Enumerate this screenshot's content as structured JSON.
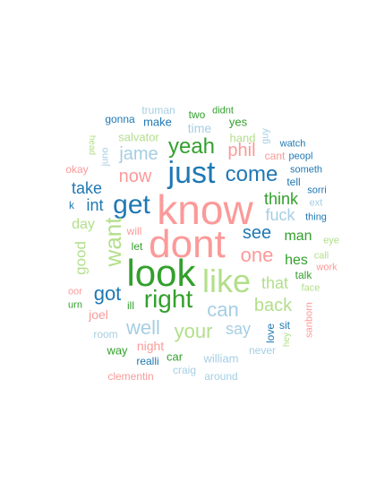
{
  "palette": {
    "dark_blue": "#1f78b4",
    "light_blue": "#a6cee3",
    "dark_green": "#33a02c",
    "light_green": "#b2df8a",
    "pink": "#fb9a99"
  },
  "words": [
    {
      "text": "know",
      "color": "#fb9a99"
    },
    {
      "text": "dont",
      "color": "#fb9a99"
    },
    {
      "text": "look",
      "color": "#33a02c"
    },
    {
      "text": "just",
      "color": "#1f78b4"
    },
    {
      "text": "like",
      "color": "#b2df8a"
    },
    {
      "text": "get",
      "color": "#1f78b4"
    },
    {
      "text": "right",
      "color": "#33a02c"
    },
    {
      "text": "come",
      "color": "#1f78b4"
    },
    {
      "text": "yeah",
      "color": "#33a02c"
    },
    {
      "text": "want",
      "color": "#b2df8a"
    },
    {
      "text": "now",
      "color": "#fb9a99"
    },
    {
      "text": "one",
      "color": "#fb9a99"
    },
    {
      "text": "got",
      "color": "#1f78b4"
    },
    {
      "text": "well",
      "color": "#a6cee3"
    },
    {
      "text": "your",
      "color": "#b2df8a"
    },
    {
      "text": "back",
      "color": "#b2df8a"
    },
    {
      "text": "can",
      "color": "#a6cee3"
    },
    {
      "text": "see",
      "color": "#1f78b4"
    },
    {
      "text": "jame",
      "color": "#a6cee3"
    },
    {
      "text": "phil",
      "color": "#fb9a99"
    },
    {
      "text": "think",
      "color": "#33a02c"
    },
    {
      "text": "fuck",
      "color": "#a6cee3"
    },
    {
      "text": "that",
      "color": "#b2df8a"
    },
    {
      "text": "take",
      "color": "#1f78b4"
    },
    {
      "text": "say",
      "color": "#a6cee3"
    },
    {
      "text": "good",
      "color": "#b2df8a"
    },
    {
      "text": "int",
      "color": "#1f78b4"
    },
    {
      "text": "man",
      "color": "#33a02c"
    },
    {
      "text": "hes",
      "color": "#33a02c"
    },
    {
      "text": "day",
      "color": "#b2df8a"
    },
    {
      "text": "time",
      "color": "#a6cee3"
    },
    {
      "text": "joel",
      "color": "#fb9a99"
    },
    {
      "text": "night",
      "color": "#fb9a99"
    },
    {
      "text": "make",
      "color": "#1f78b4"
    },
    {
      "text": "salvator",
      "color": "#b2df8a"
    },
    {
      "text": "william",
      "color": "#a6cee3"
    },
    {
      "text": "clementin",
      "color": "#fb9a99"
    },
    {
      "text": "truman",
      "color": "#a6cee3"
    },
    {
      "text": "gonna",
      "color": "#1f78b4"
    },
    {
      "text": "two",
      "color": "#33a02c"
    },
    {
      "text": "didnt",
      "color": "#33a02c"
    },
    {
      "text": "yes",
      "color": "#33a02c"
    },
    {
      "text": "hand",
      "color": "#b2df8a"
    },
    {
      "text": "guy",
      "color": "#a6cee3"
    },
    {
      "text": "watch",
      "color": "#1f78b4"
    },
    {
      "text": "cant",
      "color": "#fb9a99"
    },
    {
      "text": "peopl",
      "color": "#1f78b4"
    },
    {
      "text": "someth",
      "color": "#1f78b4"
    },
    {
      "text": "tell",
      "color": "#1f78b4"
    },
    {
      "text": "sorri",
      "color": "#1f78b4"
    },
    {
      "text": "ext",
      "color": "#a6cee3"
    },
    {
      "text": "thing",
      "color": "#1f78b4"
    },
    {
      "text": "head",
      "color": "#b2df8a"
    },
    {
      "text": "juno",
      "color": "#a6cee3"
    },
    {
      "text": "okay",
      "color": "#fb9a99"
    },
    {
      "text": "k",
      "color": "#1f78b4"
    },
    {
      "text": "will",
      "color": "#fb9a99"
    },
    {
      "text": "let",
      "color": "#33a02c"
    },
    {
      "text": "eye",
      "color": "#b2df8a"
    },
    {
      "text": "call",
      "color": "#b2df8a"
    },
    {
      "text": "work",
      "color": "#fb9a99"
    },
    {
      "text": "talk",
      "color": "#33a02c"
    },
    {
      "text": "face",
      "color": "#b2df8a"
    },
    {
      "text": "oor",
      "color": "#fb9a99"
    },
    {
      "text": "urn",
      "color": "#33a02c"
    },
    {
      "text": "ill",
      "color": "#33a02c"
    },
    {
      "text": "sanborn",
      "color": "#fb9a99"
    },
    {
      "text": "sit",
      "color": "#1f78b4"
    },
    {
      "text": "love",
      "color": "#1f78b4"
    },
    {
      "text": "hey",
      "color": "#b2df8a"
    },
    {
      "text": "room",
      "color": "#a6cee3"
    },
    {
      "text": "way",
      "color": "#33a02c"
    },
    {
      "text": "car",
      "color": "#33a02c"
    },
    {
      "text": "never",
      "color": "#a6cee3"
    },
    {
      "text": "realli",
      "color": "#1f78b4"
    },
    {
      "text": "craig",
      "color": "#a6cee3"
    },
    {
      "text": "around",
      "color": "#a6cee3"
    }
  ]
}
